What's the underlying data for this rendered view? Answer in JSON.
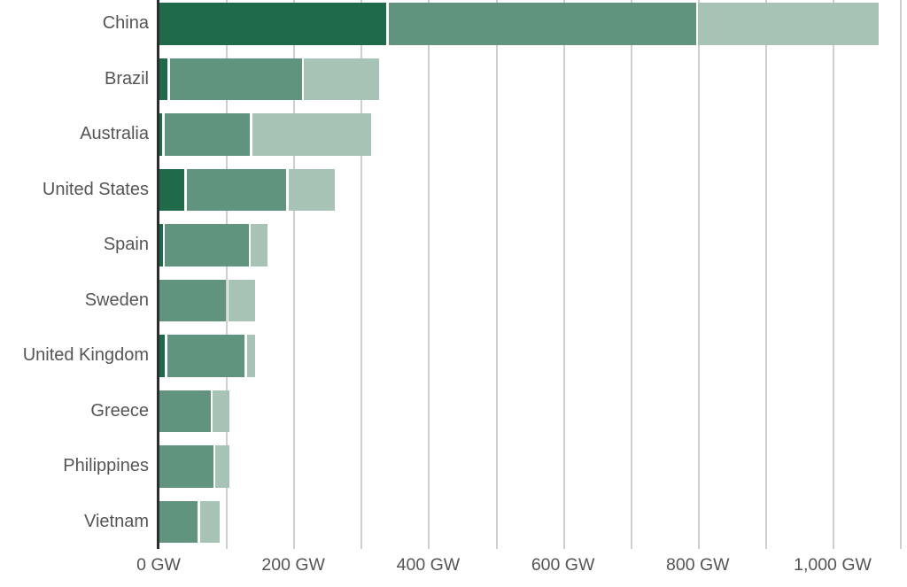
{
  "chart_data": {
    "type": "bar",
    "orientation": "horizontal",
    "unit": "GW",
    "legend": "none",
    "grid": true,
    "categories": [
      "China",
      "Brazil",
      "Australia",
      "United States",
      "Spain",
      "Sweden",
      "United Kingdom",
      "Greece",
      "Philippines",
      "Vietnam"
    ],
    "series": [
      {
        "name": "dark-green-segment",
        "color": "#1e6a4b",
        "values": [
          337,
          12,
          4,
          37,
          5,
          0,
          8,
          0,
          0,
          0
        ]
      },
      {
        "name": "medium-green-segment",
        "color": "#60947f",
        "values": [
          456,
          196,
          127,
          148,
          124,
          99,
          115,
          76,
          80,
          57
        ]
      },
      {
        "name": "light-green-segment",
        "color": "#a7c3b5",
        "values": [
          267,
          111,
          176,
          68,
          25,
          40,
          12,
          24,
          20,
          29
        ]
      }
    ],
    "totals_gw": [
      1060,
      319,
      307,
      253,
      154,
      139,
      135,
      100,
      100,
      86
    ],
    "x_axis": {
      "min": 0,
      "max": 1110,
      "gridline_interval_gw": 100,
      "tick_values": [
        0,
        200,
        400,
        600,
        800,
        1000
      ],
      "tick_labels": [
        "0 GW",
        "200 GW",
        "400 GW",
        "600 GW",
        "800 GW",
        "1,000 GW"
      ]
    },
    "colors": {
      "axis_line": "#2d2d2d",
      "gridline": "#cfcfcf",
      "label_text": "#555555",
      "background": "#ffffff"
    }
  }
}
